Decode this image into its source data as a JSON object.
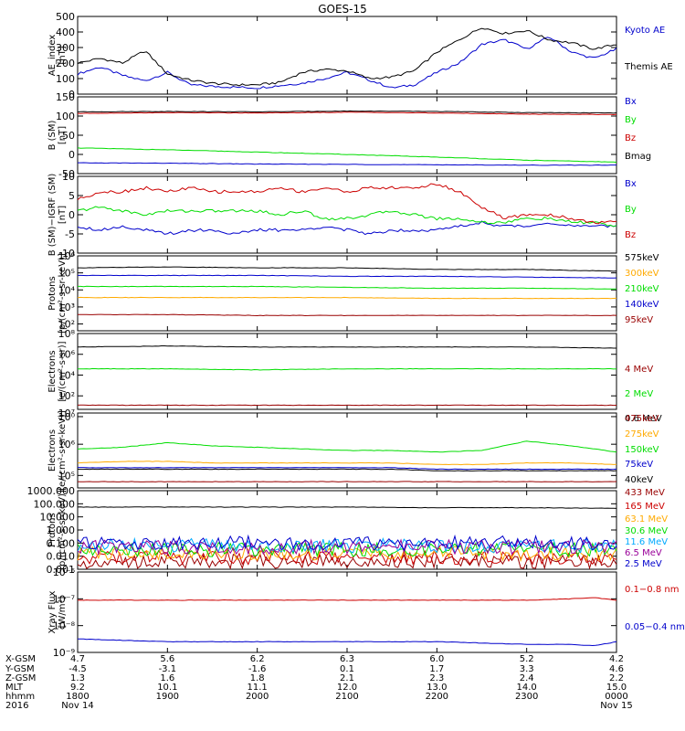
{
  "title": "GOES-15",
  "colors": {
    "black": "#000000",
    "blue": "#0000cc",
    "red": "#cc0000",
    "green": "#00dd00",
    "orange": "#ffaa00",
    "cyan": "#00aaff",
    "purple": "#990099",
    "darkred": "#990000"
  },
  "chart_data": [
    {
      "type": "line",
      "ylabel": [
        "AE_index",
        "[nT]"
      ],
      "ylim": [
        0,
        500
      ],
      "yticks": [
        "500",
        "400",
        "300",
        "200",
        "100",
        "0"
      ],
      "yticks_values": [
        500,
        400,
        300,
        200,
        100,
        0
      ],
      "x_hours": [
        0,
        0.25,
        0.5,
        0.75,
        1.0,
        1.25,
        1.5,
        1.75,
        2.0,
        2.25,
        2.5,
        2.75,
        3.0,
        3.25,
        3.5,
        3.75,
        4.0,
        4.25,
        4.5,
        4.75,
        5.0,
        5.25,
        5.5,
        5.75,
        6.0
      ],
      "series": [
        {
          "name": "Kyoto AE",
          "color": "#0000cc",
          "values": [
            130,
            175,
            120,
            85,
            140,
            60,
            50,
            45,
            40,
            55,
            70,
            100,
            140,
            90,
            40,
            60,
            140,
            200,
            320,
            350,
            290,
            370,
            270,
            230,
            290
          ]
        },
        {
          "name": "Themis AE",
          "color": "#000000",
          "values": [
            200,
            230,
            200,
            280,
            130,
            90,
            70,
            60,
            60,
            75,
            140,
            160,
            150,
            100,
            110,
            150,
            270,
            350,
            430,
            390,
            410,
            350,
            330,
            290,
            320
          ]
        }
      ]
    },
    {
      "type": "line",
      "ylabel": [
        "B (SM)",
        "[nT]"
      ],
      "ylim": [
        -50,
        150
      ],
      "yticks": [
        "150",
        "100",
        "50",
        "0",
        "-50"
      ],
      "yticks_values": [
        150,
        100,
        50,
        0,
        -50
      ],
      "x_hours": [
        0,
        1,
        2,
        3,
        4,
        5,
        6
      ],
      "series": [
        {
          "name": "Bx",
          "color": "#0000cc",
          "values": [
            -22,
            -23,
            -25,
            -26,
            -27,
            -28,
            -28
          ]
        },
        {
          "name": "By",
          "color": "#00dd00",
          "values": [
            17,
            12,
            6,
            0,
            -7,
            -15,
            -20
          ]
        },
        {
          "name": "Bz",
          "color": "#cc0000",
          "values": [
            107,
            109,
            108,
            110,
            108,
            105,
            104
          ]
        },
        {
          "name": "Bmag",
          "color": "#000000",
          "values": [
            111,
            112,
            111,
            113,
            112,
            109,
            108
          ]
        }
      ]
    },
    {
      "type": "line",
      "ylabel": [
        "B (SM)−IGRF (SM)",
        "[nT]"
      ],
      "ylim": [
        -10,
        10
      ],
      "yticks": [
        "10",
        "5",
        "0",
        "-5",
        "-10"
      ],
      "yticks_values": [
        10,
        5,
        0,
        -5,
        -10
      ],
      "x_hours": [
        0,
        0.25,
        0.5,
        0.75,
        1.0,
        1.25,
        1.5,
        1.75,
        2.0,
        2.25,
        2.5,
        2.75,
        3.0,
        3.25,
        3.5,
        3.75,
        4.0,
        4.25,
        4.5,
        4.75,
        5.0,
        5.25,
        5.5,
        5.75,
        6.0
      ],
      "series": [
        {
          "name": "Bx",
          "color": "#0000cc",
          "values": [
            -3,
            -4,
            -3,
            -4,
            -5,
            -4,
            -4,
            -5,
            -4,
            -4,
            -4,
            -3,
            -4,
            -5,
            -4,
            -4,
            -4,
            -3,
            -2,
            -3,
            -3,
            -2,
            -3,
            -3,
            -3
          ]
        },
        {
          "name": "By",
          "color": "#00dd00",
          "values": [
            1,
            2,
            1,
            0,
            1,
            1,
            1,
            1,
            1,
            0,
            1,
            -1,
            -1,
            0,
            1,
            0,
            -1,
            -1,
            -2,
            -2,
            -1,
            -1,
            -2,
            -2,
            -3
          ]
        },
        {
          "name": "Bz",
          "color": "#cc0000",
          "values": [
            4,
            6,
            6,
            7,
            6,
            7,
            6,
            6,
            6,
            7,
            6,
            7,
            6,
            7,
            7,
            7,
            8,
            6,
            2,
            -1,
            0,
            0,
            -1,
            -2,
            -2
          ]
        }
      ]
    },
    {
      "type": "line",
      "ylabel": [
        "Protons",
        "[p/(cm²-s-sr-keV)]"
      ],
      "yscale": "log",
      "ylim_log10": [
        1.6,
        6
      ],
      "yticks": [
        "10⁶",
        "10⁵",
        "10⁴",
        "10³",
        "10²"
      ],
      "yticks_values": [
        6,
        5,
        4,
        3,
        2
      ],
      "x_hours": [
        0,
        1,
        2,
        3,
        4,
        5,
        6
      ],
      "series": [
        {
          "name": "575keV",
          "color": "#000000",
          "log10_values": [
            5.3,
            5.35,
            5.3,
            5.3,
            5.2,
            5.2,
            5.1
          ]
        },
        {
          "name": "300keV",
          "color": "#ffaa00",
          "log10_values": [
            3.55,
            3.55,
            3.55,
            3.55,
            3.5,
            3.5,
            3.5
          ]
        },
        {
          "name": "210keV",
          "color": "#00dd00",
          "log10_values": [
            4.2,
            4.2,
            4.2,
            4.15,
            4.1,
            4.1,
            4.05
          ]
        },
        {
          "name": "140keV",
          "color": "#0000cc",
          "log10_values": [
            4.85,
            4.85,
            4.85,
            4.8,
            4.8,
            4.75,
            4.7
          ]
        },
        {
          "name": "95keV",
          "color": "#990000",
          "log10_values": [
            2.55,
            2.55,
            2.5,
            2.5,
            2.5,
            2.5,
            2.5
          ]
        }
      ]
    },
    {
      "type": "line",
      "ylabel": [
        "Electrons",
        "[e/(cm²-s-sr)]"
      ],
      "yscale": "log",
      "ylim_log10": [
        0.7,
        8
      ],
      "yticks": [
        "10⁸",
        "10⁶",
        "10⁴",
        "10²",
        "10⁰"
      ],
      "yticks_values": [
        8,
        6,
        4,
        2,
        0
      ],
      "x_hours": [
        0,
        1,
        2,
        3,
        4,
        5,
        6
      ],
      "series": [
        {
          "name": "4 MeV",
          "color": "#990000",
          "log10_values": [
            1.1,
            1.1,
            1.1,
            1.1,
            1.1,
            1.1,
            1.1
          ]
        },
        {
          "name": "2 MeV",
          "color": "#00dd00",
          "log10_values": [
            4.6,
            4.6,
            4.5,
            4.6,
            4.6,
            4.6,
            4.6
          ]
        },
        {
          "name": "0.6 MeV",
          "color": "#000000",
          "log10_values": [
            6.7,
            6.8,
            6.7,
            6.7,
            6.7,
            6.7,
            6.6
          ]
        }
      ]
    },
    {
      "type": "line",
      "ylabel": [
        "Electrons",
        "[e/(cm²-s-sr-keV)]"
      ],
      "yscale": "log",
      "ylim_log10": [
        4.6,
        7
      ],
      "yticks": [
        "10⁷",
        "10⁶",
        "10⁵"
      ],
      "yticks_values": [
        7,
        6,
        5
      ],
      "x_hours": [
        0,
        0.5,
        1.0,
        1.5,
        2.0,
        2.5,
        3.0,
        3.5,
        4.0,
        4.5,
        5.0,
        5.5,
        6.0
      ],
      "series": [
        {
          "name": "475keV",
          "color": "#990000",
          "log10_values": [
            4.8,
            4.8,
            4.8,
            4.8,
            4.8,
            4.8,
            4.8,
            4.8,
            4.8,
            4.8,
            4.8,
            4.8,
            4.8
          ]
        },
        {
          "name": "275keV",
          "color": "#ffaa00",
          "log10_values": [
            5.4,
            5.45,
            5.45,
            5.4,
            5.4,
            5.4,
            5.4,
            5.4,
            5.35,
            5.35,
            5.4,
            5.4,
            5.35
          ]
        },
        {
          "name": "150keV",
          "color": "#00dd00",
          "log10_values": [
            5.85,
            5.9,
            6.05,
            5.95,
            5.9,
            5.85,
            5.8,
            5.8,
            5.75,
            5.8,
            6.1,
            5.95,
            5.75
          ]
        },
        {
          "name": "75keV",
          "color": "#0000cc",
          "log10_values": [
            5.25,
            5.25,
            5.25,
            5.25,
            5.25,
            5.25,
            5.25,
            5.25,
            5.2,
            5.2,
            5.2,
            5.2,
            5.2
          ]
        },
        {
          "name": "40keV",
          "color": "#000000",
          "log10_values": [
            5.2,
            5.2,
            5.2,
            5.2,
            5.2,
            5.2,
            5.2,
            5.2,
            5.15,
            5.15,
            5.15,
            5.15,
            5.15
          ]
        }
      ]
    },
    {
      "type": "line",
      "ylabel": [
        "Protons",
        "[p/(cm²-s-sr-keV)]"
      ],
      "yscale": "log",
      "ylim_log10": [
        -3,
        3
      ],
      "yticks": [
        "1000.000",
        "100.000",
        "10.000",
        "1.000",
        "0.100",
        "0.010",
        "0.001"
      ],
      "yticks_values": [
        3,
        2,
        1,
        0,
        -1,
        -2,
        -3
      ],
      "x_hours": [
        0,
        1,
        2,
        3,
        4,
        5,
        6
      ],
      "series": [
        {
          "name": "433 MeV",
          "color": "#990000",
          "log10_values": [
            -2.4,
            -2.4,
            -2.4,
            -2.4,
            -2.4,
            -2.4,
            -2.4
          ]
        },
        {
          "name": "165 MeV",
          "color": "#cc0000",
          "log10_values": [
            -2.1,
            -2.1,
            -2.1,
            -2.1,
            -2.1,
            -2.1,
            -2.1
          ]
        },
        {
          "name": "63.1 MeV",
          "color": "#ffaa00",
          "log10_values": [
            -1.8,
            -1.8,
            -1.8,
            -1.8,
            -1.8,
            -1.8,
            -1.8
          ]
        },
        {
          "name": "30.6 MeV",
          "color": "#00dd00",
          "log10_values": [
            -1.5,
            -1.5,
            -1.5,
            -1.5,
            -1.5,
            -1.5,
            -1.5
          ]
        },
        {
          "name": "11.6 MeV",
          "color": "#00aaff",
          "log10_values": [
            -1.2,
            -1.2,
            -1.2,
            -1.2,
            -1.2,
            -1.2,
            -1.2
          ]
        },
        {
          "name": "6.5 MeV",
          "color": "#990099",
          "log10_values": [
            -1.3,
            -1.3,
            -1.3,
            -1.3,
            -1.3,
            -1.3,
            -1.3
          ]
        },
        {
          "name": "2.5 MeV",
          "color": "#0000cc",
          "log10_values": [
            -1.0,
            -1.0,
            -1.0,
            -1.0,
            -1.0,
            -1.0,
            -1.0
          ]
        },
        {
          "name": "",
          "color": "#000000",
          "log10_values": [
            1.75,
            1.75,
            1.75,
            1.75,
            1.7,
            1.7,
            1.65
          ]
        }
      ]
    },
    {
      "type": "line",
      "ylabel": [
        "Xray Flux",
        "[W/m²]"
      ],
      "yscale": "log",
      "ylim_log10": [
        -9,
        -6
      ],
      "yticks": [
        "10⁻⁶",
        "10⁻⁷",
        "10⁻⁸",
        "10⁻⁹"
      ],
      "yticks_values": [
        -6,
        -7,
        -8,
        -9
      ],
      "x_hours": [
        0,
        1,
        2,
        3,
        4,
        5,
        5.5,
        5.75,
        6
      ],
      "series": [
        {
          "name": "0.1−0.8 nm",
          "color": "#cc0000",
          "log10_values": [
            -7.05,
            -7.05,
            -7.05,
            -7.05,
            -7.05,
            -7.05,
            -7.0,
            -6.95,
            -7.05
          ]
        },
        {
          "name": "0.05−0.4 nm",
          "color": "#0000cc",
          "log10_values": [
            -8.5,
            -8.6,
            -8.6,
            -8.6,
            -8.6,
            -8.7,
            -8.7,
            -8.75,
            -8.6
          ]
        }
      ]
    }
  ],
  "xaxis": {
    "row_labels": [
      "X-GSM",
      "Y-GSM",
      "Z-GSM",
      "MLT",
      "hhmm",
      "2016"
    ],
    "columns": [
      [
        "4.7",
        "-4.5",
        "1.3",
        "9.2",
        "1800",
        "Nov 14"
      ],
      [
        "5.6",
        "-3.1",
        "1.6",
        "10.1",
        "1900",
        ""
      ],
      [
        "6.2",
        "-1.6",
        "1.8",
        "11.1",
        "2000",
        ""
      ],
      [
        "6.3",
        "0.1",
        "2.1",
        "12.0",
        "2100",
        ""
      ],
      [
        "6.0",
        "1.7",
        "2.3",
        "13.0",
        "2200",
        ""
      ],
      [
        "5.2",
        "3.3",
        "2.4",
        "14.0",
        "2300",
        ""
      ],
      [
        "4.2",
        "4.6",
        "2.2",
        "15.0",
        "0000",
        "Nov 15"
      ]
    ]
  }
}
